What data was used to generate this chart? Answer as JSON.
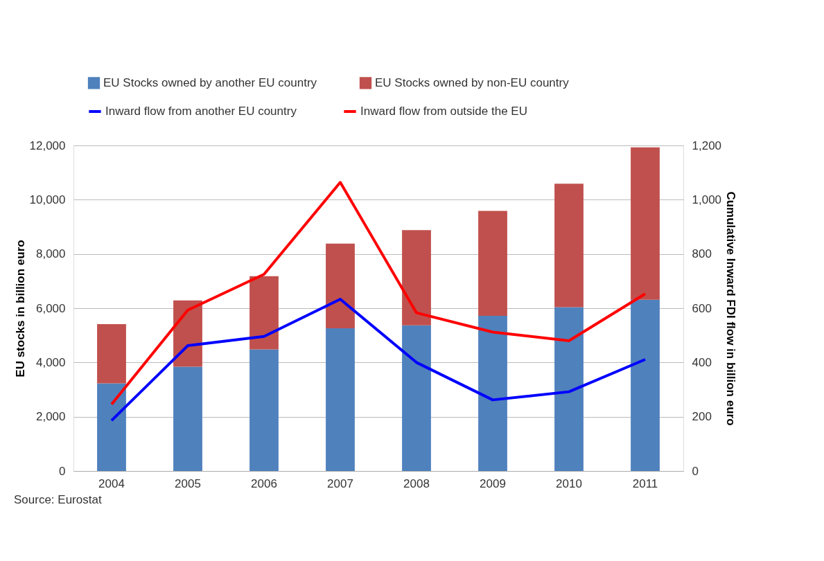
{
  "chart_data": {
    "type": "bar",
    "stacked": true,
    "ylabel": "EU stocks in billion euro",
    "y2label": "Cumulative Inward FDI flow in billion euro",
    "categories": [
      "2004",
      "2005",
      "2006",
      "2007",
      "2008",
      "2009",
      "2010",
      "2011"
    ],
    "series": [
      {
        "name": "EU Stocks owned by another EU country",
        "color": "#4f81bd",
        "values": [
          3230,
          3840,
          4480,
          5260,
          5370,
          5720,
          6040,
          6310
        ]
      },
      {
        "name": "EU Stocks owned by non-EU country",
        "color": "#c0504d",
        "values": [
          2180,
          2450,
          2700,
          3120,
          3510,
          3870,
          4550,
          5620
        ]
      },
      {
        "name": "Inward flow from another EU country",
        "color": "#0000ff",
        "type": "line",
        "axis": "y2",
        "values": [
          186,
          462,
          496,
          633,
          400,
          262,
          292,
          411
        ]
      },
      {
        "name": "Inward flow from outside the EU",
        "color": "#ff0000",
        "type": "line",
        "axis": "y2",
        "values": [
          246,
          593,
          725,
          1064,
          583,
          512,
          480,
          653
        ]
      }
    ],
    "ylim": [
      0,
      12000
    ],
    "yticks": [
      0,
      {
        "value": 2000,
        "label": "2,000"
      },
      {
        "value": 4000,
        "label": "4,000"
      },
      {
        "value": 6000,
        "label": "6,000"
      },
      {
        "value": 8000,
        "label": "8,000"
      },
      {
        "value": 10000,
        "label": "10,000"
      },
      {
        "value": 12000,
        "label": "12,000"
      }
    ],
    "y2lim": [
      0,
      1200
    ],
    "y2ticks": [
      0,
      200,
      400,
      600,
      800,
      {
        "value": 1000,
        "label": "1,000"
      },
      {
        "value": 1200,
        "label": "1,200"
      }
    ],
    "grid": "y",
    "legend": "top",
    "marker": "none",
    "line_style": "solid",
    "annotations": [
      "Source: Eurostat"
    ]
  }
}
